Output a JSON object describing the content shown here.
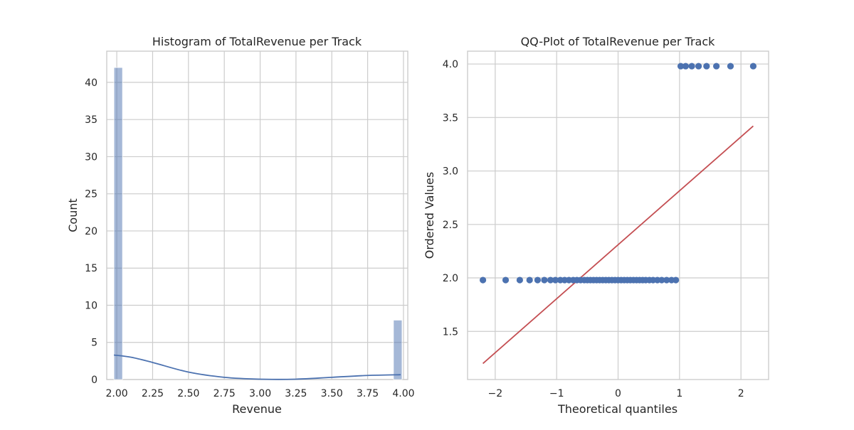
{
  "chart_data": [
    {
      "type": "bar",
      "title": "Histogram of TotalRevenue per Track",
      "xlabel": "Revenue",
      "ylabel": "Count",
      "xlim": [
        1.93,
        4.03
      ],
      "ylim": [
        0,
        44.2
      ],
      "xticks": [
        2.0,
        2.25,
        2.5,
        2.75,
        3.0,
        3.25,
        3.5,
        3.75,
        4.0
      ],
      "xtick_labels": [
        "2.00",
        "2.25",
        "2.50",
        "2.75",
        "3.00",
        "3.25",
        "3.50",
        "3.75",
        "4.00"
      ],
      "yticks": [
        0,
        5,
        10,
        15,
        20,
        25,
        30,
        35,
        40
      ],
      "ytick_labels": [
        "0",
        "5",
        "10",
        "15",
        "20",
        "25",
        "30",
        "35",
        "40"
      ],
      "grid": true,
      "colors": {
        "bar": "#4c72b0",
        "kde": "#4c72b0"
      },
      "bars": [
        {
          "x0": 1.98,
          "x1": 2.04,
          "count": 42
        },
        {
          "x0": 3.93,
          "x1": 3.99,
          "count": 8
        }
      ],
      "kde": {
        "x": [
          1.98,
          2.1,
          2.25,
          2.5,
          2.75,
          3.0,
          3.25,
          3.5,
          3.75,
          3.98
        ],
        "y": [
          3.3,
          3.0,
          2.3,
          1.0,
          0.3,
          0.05,
          0.05,
          0.3,
          0.55,
          0.65
        ]
      }
    },
    {
      "type": "scatter",
      "title": "QQ-Plot of TotalRevenue per Track",
      "xlabel": "Theoretical quantiles",
      "ylabel": "Ordered Values",
      "xlim": [
        -2.45,
        2.45
      ],
      "ylim": [
        1.05,
        4.12
      ],
      "xticks": [
        -2,
        -1,
        0,
        1,
        2
      ],
      "xtick_labels": [
        "−2",
        "−1",
        "0",
        "1",
        "2"
      ],
      "yticks": [
        1.5,
        2.0,
        2.5,
        3.0,
        3.5,
        4.0
      ],
      "ytick_labels": [
        "1.5",
        "2.0",
        "2.5",
        "3.0",
        "3.5",
        "4.0"
      ],
      "grid": true,
      "colors": {
        "points": "#4c72b0",
        "fit_line": "#c44e52"
      },
      "points_low": {
        "y": 1.98,
        "x": [
          -2.2,
          -1.83,
          -1.6,
          -1.44,
          -1.31,
          -1.2,
          -1.1,
          -1.02,
          -0.94,
          -0.87,
          -0.8,
          -0.73,
          -0.67,
          -0.61,
          -0.55,
          -0.5,
          -0.45,
          -0.4,
          -0.35,
          -0.3,
          -0.25,
          -0.2,
          -0.15,
          -0.1,
          -0.05,
          0.0,
          0.05,
          0.1,
          0.15,
          0.2,
          0.25,
          0.3,
          0.35,
          0.4,
          0.45,
          0.51,
          0.57,
          0.64,
          0.71,
          0.79,
          0.87,
          0.94
        ]
      },
      "points_high": {
        "y": 3.98,
        "x": [
          1.02,
          1.1,
          1.2,
          1.31,
          1.44,
          1.6,
          1.83,
          2.2
        ]
      },
      "fit_line": {
        "x": [
          -2.2,
          2.2
        ],
        "y": [
          1.2,
          3.42
        ]
      }
    }
  ]
}
